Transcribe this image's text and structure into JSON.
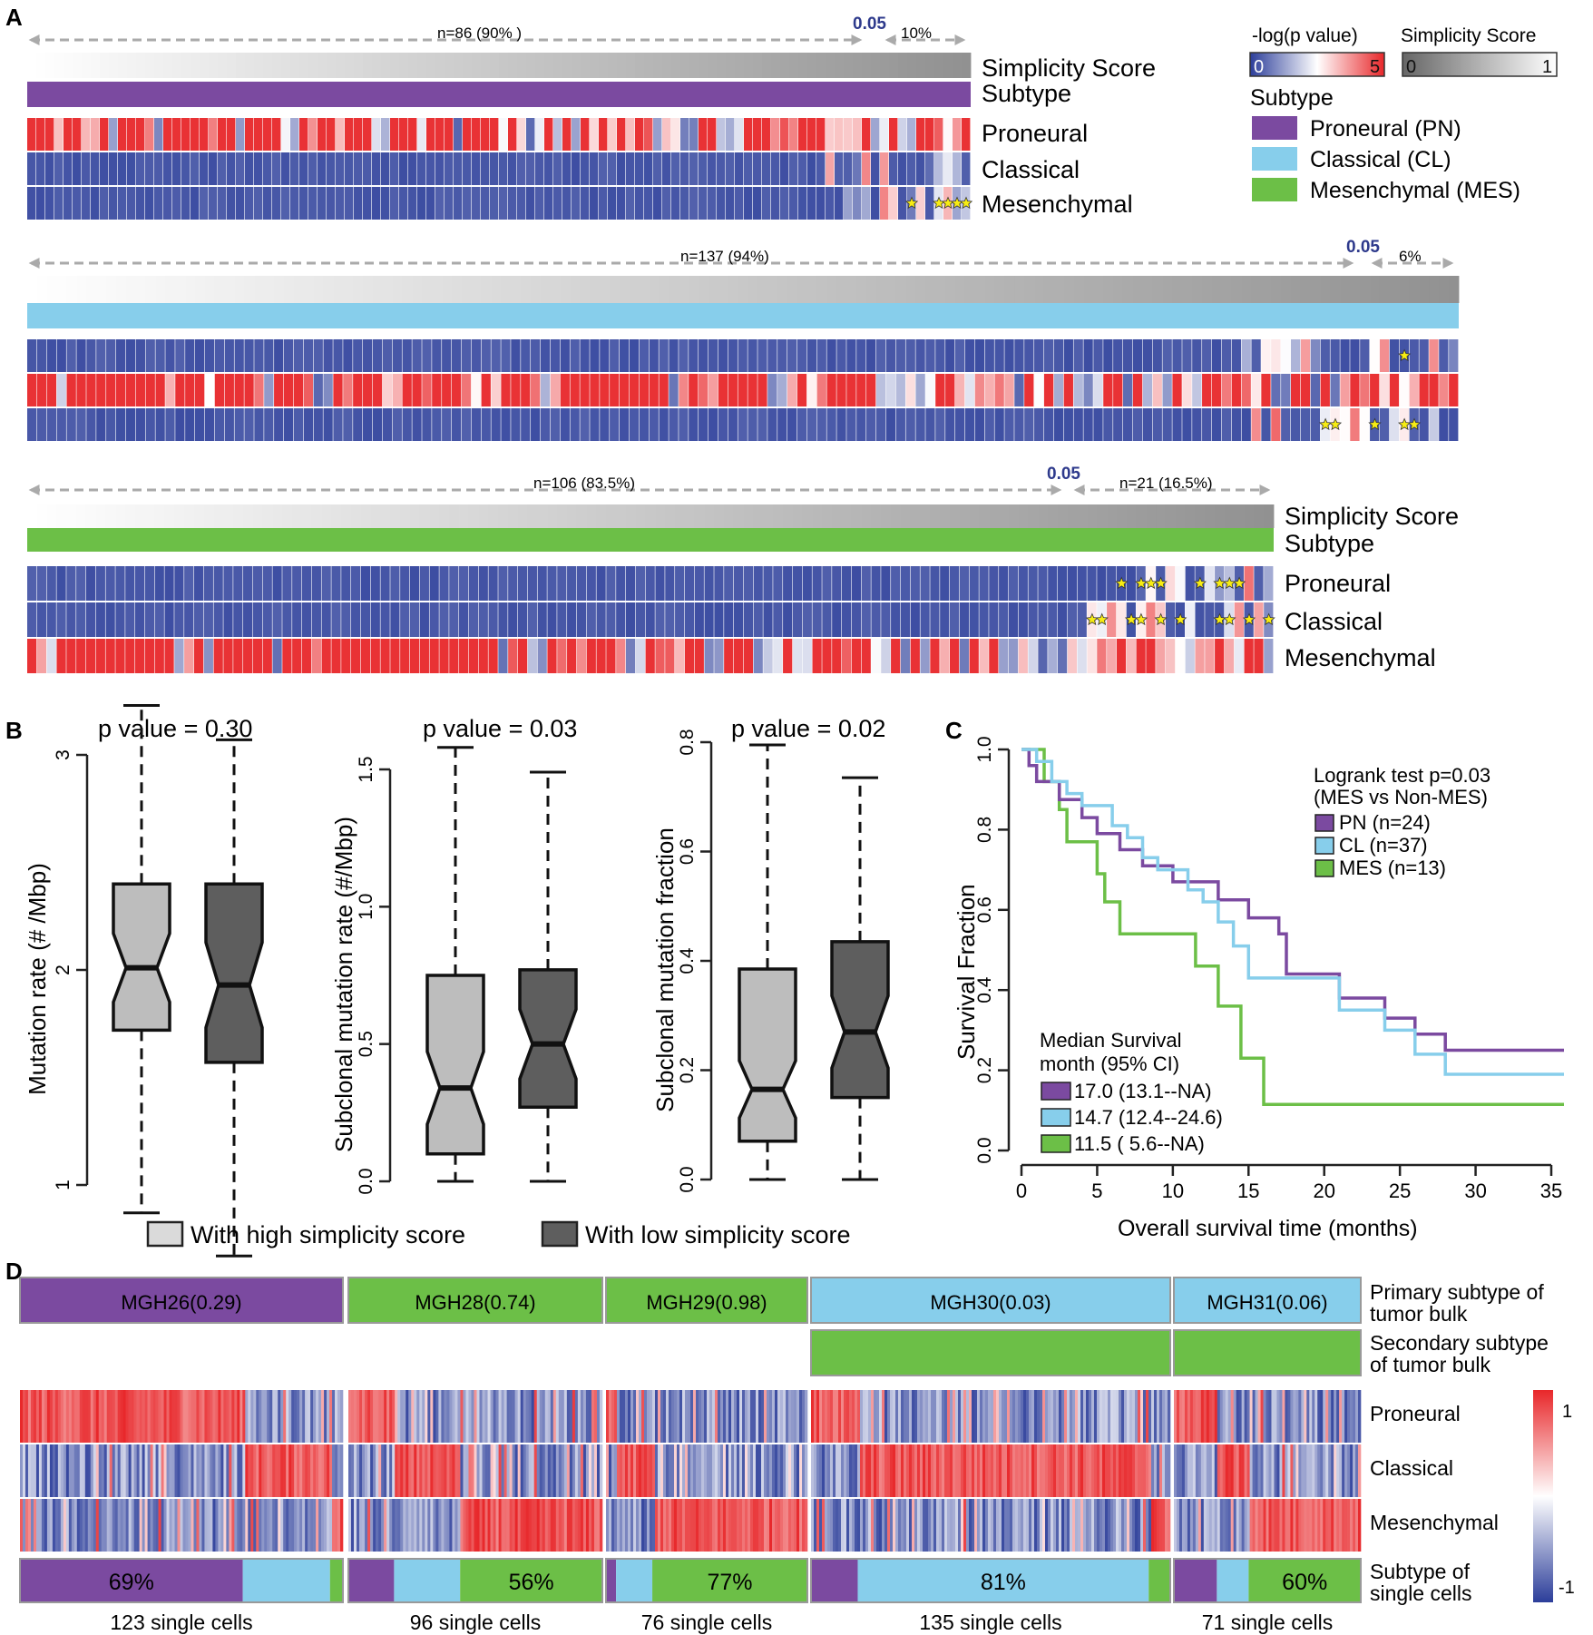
{
  "colors": {
    "proneural": "#7B4AA0",
    "classical": "#87CEEB",
    "mesenchymal": "#6CBF47",
    "pval_low": "#2C3E9A",
    "pval_high": "#E8272A",
    "box_high": "#BDBDBD",
    "box_low": "#5E5E5E",
    "star": "#F7EC13",
    "threshold": "#2E3A8C"
  },
  "panelA": {
    "label": "A",
    "row_labels": {
      "simplicity": "Simplicity Score",
      "subtype": "Subtype",
      "proneural": "Proneural",
      "classical": "Classical",
      "mesenchymal": "Mesenchymal"
    },
    "legend": {
      "pval_title": "-log(p value)",
      "pval_min": "0",
      "pval_max": "5",
      "simplicity_title": "Simplicity Score",
      "simplicity_min": "0",
      "simplicity_max": "1",
      "subtype_title": "Subtype",
      "items": [
        "Proneural (PN)",
        "Classical (CL)",
        "Mesenchymal (MES)"
      ]
    },
    "groups": [
      {
        "subtype": "proneural",
        "left_text": "n=86 (90% )",
        "threshold": "0.05",
        "right_text": "10%"
      },
      {
        "subtype": "classical",
        "left_text": "n=137 (94%)",
        "threshold": "0.05",
        "right_text": "6%"
      },
      {
        "subtype": "mesenchymal",
        "left_text": "n=106 (83.5%)",
        "threshold": "0.05",
        "right_text": "n=21 (16.5%)"
      }
    ]
  },
  "panelB": {
    "label": "B",
    "legend": [
      "With high simplicity score",
      "With low simplicity score"
    ],
    "plots": [
      {
        "title": "p value = 0.30",
        "ylabel": "Mutation rate (# /Mbp)",
        "yticks": [
          "1",
          "2",
          "3"
        ],
        "ylim": [
          1,
          3
        ],
        "chart_data": {
          "type": "box",
          "series": [
            {
              "group": "high",
              "min": 0.87,
              "q1": 1.72,
              "median": 2.01,
              "q3": 2.4,
              "max": 3.23
            },
            {
              "group": "low",
              "min": 0.67,
              "q1": 1.57,
              "median": 1.93,
              "q3": 2.4,
              "max": 3.07
            }
          ]
        }
      },
      {
        "title": "p value = 0.03",
        "ylabel": "Subclonal mutation rate (#/Mbp)",
        "yticks": [
          "0.0",
          "0.5",
          "1.0",
          "1.5"
        ],
        "ylim": [
          0,
          1.5
        ],
        "chart_data": {
          "type": "box",
          "series": [
            {
              "group": "high",
              "min": 0.0,
              "q1": 0.1,
              "median": 0.34,
              "q3": 0.75,
              "max": 1.58
            },
            {
              "group": "low",
              "min": 0.0,
              "q1": 0.27,
              "median": 0.5,
              "q3": 0.77,
              "max": 1.49
            }
          ]
        }
      },
      {
        "title": "p value = 0.02",
        "ylabel": "Subclonal mutation fraction",
        "yticks": [
          "0.0",
          "0.2",
          "0.4",
          "0.6",
          "0.8"
        ],
        "ylim": [
          0,
          0.8
        ],
        "chart_data": {
          "type": "box",
          "series": [
            {
              "group": "high",
              "min": 0.0,
              "q1": 0.07,
              "median": 0.165,
              "q3": 0.385,
              "max": 0.795
            },
            {
              "group": "low",
              "min": 0.0,
              "q1": 0.15,
              "median": 0.27,
              "q3": 0.435,
              "max": 0.735
            }
          ]
        }
      }
    ]
  },
  "panelC": {
    "label": "C",
    "xlabel": "Overall survival time (months)",
    "ylabel": "Survival Fraction",
    "xticks": [
      "0",
      "5",
      "10",
      "15",
      "20",
      "25",
      "30",
      "35"
    ],
    "yticks": [
      "0.0",
      "0.2",
      "0.4",
      "0.6",
      "0.8",
      "1.0"
    ],
    "test_line1": "Logrank test p=0.03",
    "test_line2": "(MES vs Non-MES)",
    "legend": [
      "PN (n=24)",
      "CL (n=37)",
      "MES (n=13)"
    ],
    "median_title1": "Median Survival",
    "median_title2": "month (95% CI)",
    "medians": [
      "17.0 (13.1--NA)",
      "14.7 (12.4--24.6)",
      "11.5 (  5.6--NA)"
    ],
    "chart_data": {
      "type": "line",
      "xlim": [
        0,
        35
      ],
      "ylim": [
        0,
        1
      ],
      "series": [
        {
          "name": "PN (n=24)",
          "points": [
            [
              0,
              1
            ],
            [
              0.5,
              1
            ],
            [
              0.5,
              0.96
            ],
            [
              1,
              0.96
            ],
            [
              1,
              0.92
            ],
            [
              2.5,
              0.92
            ],
            [
              2.5,
              0.875
            ],
            [
              4,
              0.875
            ],
            [
              4,
              0.83
            ],
            [
              5,
              0.83
            ],
            [
              5,
              0.79
            ],
            [
              6.5,
              0.79
            ],
            [
              6.5,
              0.75
            ],
            [
              8,
              0.75
            ],
            [
              8,
              0.71
            ],
            [
              10,
              0.71
            ],
            [
              10,
              0.67
            ],
            [
              13,
              0.67
            ],
            [
              13,
              0.625
            ],
            [
              15,
              0.625
            ],
            [
              15,
              0.58
            ],
            [
              17,
              0.58
            ],
            [
              17,
              0.54
            ],
            [
              17.5,
              0.54
            ],
            [
              17.5,
              0.5
            ],
            [
              17.5,
              0.44
            ],
            [
              21,
              0.44
            ],
            [
              21,
              0.38
            ],
            [
              24,
              0.38
            ],
            [
              24,
              0.33
            ],
            [
              26,
              0.33
            ],
            [
              26,
              0.29
            ],
            [
              28,
              0.29
            ],
            [
              28,
              0.25
            ],
            [
              36,
              0.25
            ]
          ]
        },
        {
          "name": "CL (n=37)",
          "points": [
            [
              0,
              1
            ],
            [
              1,
              1
            ],
            [
              1,
              0.97
            ],
            [
              2,
              0.97
            ],
            [
              2,
              0.92
            ],
            [
              3,
              0.92
            ],
            [
              3,
              0.89
            ],
            [
              4,
              0.89
            ],
            [
              4,
              0.86
            ],
            [
              6,
              0.86
            ],
            [
              6,
              0.81
            ],
            [
              7,
              0.81
            ],
            [
              7,
              0.78
            ],
            [
              8,
              0.78
            ],
            [
              8,
              0.73
            ],
            [
              9,
              0.73
            ],
            [
              9,
              0.7
            ],
            [
              11,
              0.7
            ],
            [
              11,
              0.65
            ],
            [
              12,
              0.65
            ],
            [
              12,
              0.62
            ],
            [
              13,
              0.62
            ],
            [
              13,
              0.57
            ],
            [
              14,
              0.57
            ],
            [
              14,
              0.51
            ],
            [
              15,
              0.51
            ],
            [
              15,
              0.43
            ],
            [
              21,
              0.43
            ],
            [
              21,
              0.35
            ],
            [
              24,
              0.35
            ],
            [
              24,
              0.3
            ],
            [
              26,
              0.3
            ],
            [
              26,
              0.24
            ],
            [
              28,
              0.24
            ],
            [
              28,
              0.19
            ],
            [
              36,
              0.19
            ]
          ]
        },
        {
          "name": "MES (n=13)",
          "points": [
            [
              0,
              1
            ],
            [
              1.5,
              1
            ],
            [
              1.5,
              0.92
            ],
            [
              2.5,
              0.92
            ],
            [
              2.5,
              0.85
            ],
            [
              3,
              0.85
            ],
            [
              3,
              0.77
            ],
            [
              5,
              0.77
            ],
            [
              5,
              0.69
            ],
            [
              5.5,
              0.69
            ],
            [
              5.5,
              0.62
            ],
            [
              6.5,
              0.62
            ],
            [
              6.5,
              0.54
            ],
            [
              11.5,
              0.54
            ],
            [
              11.5,
              0.46
            ],
            [
              13,
              0.46
            ],
            [
              13,
              0.36
            ],
            [
              14.5,
              0.36
            ],
            [
              14.5,
              0.23
            ],
            [
              16,
              0.23
            ],
            [
              16,
              0.115
            ],
            [
              36,
              0.115
            ]
          ]
        }
      ]
    }
  },
  "panelD": {
    "label": "D",
    "row_labels": {
      "primary1": "Primary subtype of",
      "primary2": "tumor bulk",
      "secondary1": "Secondary subtype",
      "secondary2": "of tumor bulk",
      "proneural": "Proneural",
      "classical": "Classical",
      "mesenchymal": "Mesenchymal",
      "single1": "Subtype of",
      "single2": "single cells"
    },
    "scale_max": "1",
    "scale_min": "-1",
    "tumors": [
      {
        "name": "MGH26(0.29)",
        "primary": "proneural",
        "secondary": null,
        "cells": "123 single cells",
        "pct": "69%",
        "fractions": [
          0.69,
          0.27,
          0.04
        ]
      },
      {
        "name": "MGH28(0.74)",
        "primary": "mesenchymal",
        "secondary": null,
        "cells": "96 single cells",
        "pct": "56%",
        "fractions": [
          0.18,
          0.26,
          0.56
        ]
      },
      {
        "name": "MGH29(0.98)",
        "primary": "mesenchymal",
        "secondary": null,
        "cells": "76 single cells",
        "pct": "77%",
        "fractions": [
          0.05,
          0.18,
          0.77
        ]
      },
      {
        "name": "MGH30(0.03)",
        "primary": "classical",
        "secondary": "mesenchymal",
        "cells": "135 single cells",
        "pct": "81%",
        "fractions": [
          0.13,
          0.81,
          0.06
        ]
      },
      {
        "name": "MGH31(0.06)",
        "primary": "classical",
        "secondary": "mesenchymal",
        "cells": "71 single cells",
        "pct": "60%",
        "fractions": [
          0.23,
          0.17,
          0.6
        ]
      }
    ]
  }
}
